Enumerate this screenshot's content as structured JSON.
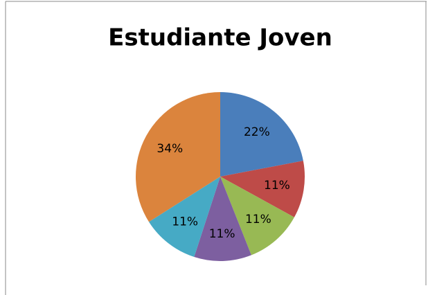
{
  "chart_data": {
    "type": "pie",
    "title": "Estudiante Joven",
    "values": [
      22,
      11,
      11,
      11,
      11,
      34
    ],
    "value_labels": [
      "22%",
      "11%",
      "11%",
      "11%",
      "11%",
      "34%"
    ],
    "colors": [
      "#4a7ebb",
      "#be4b48",
      "#98b954",
      "#7d5fa0",
      "#46aac5",
      "#db843d"
    ]
  }
}
